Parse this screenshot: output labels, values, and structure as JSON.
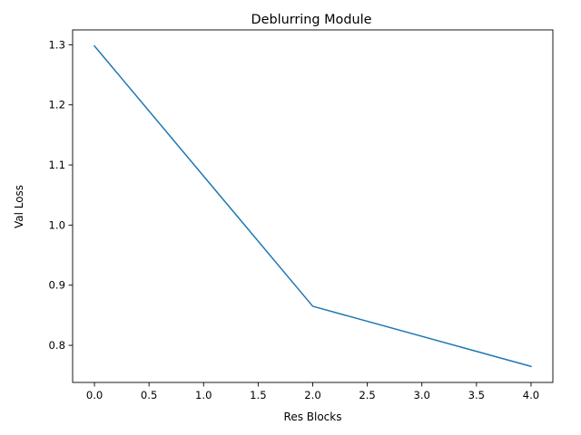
{
  "chart_data": {
    "type": "line",
    "title": "Deblurring Module",
    "xlabel": "Res Blocks",
    "ylabel": "Val Loss",
    "x": [
      0.0,
      2.0,
      4.0
    ],
    "series": [
      {
        "values": [
          1.298,
          0.865,
          0.765
        ],
        "color": "#1f77b4"
      }
    ],
    "xlim": [
      -0.2,
      4.2
    ],
    "ylim": [
      0.7383,
      1.3247
    ],
    "xticks": [
      "0.0",
      "0.5",
      "1.0",
      "1.5",
      "2.0",
      "2.5",
      "3.0",
      "3.5",
      "4.0"
    ],
    "yticks": [
      "0.8",
      "0.9",
      "1.0",
      "1.1",
      "1.2",
      "1.3"
    ],
    "grid": false,
    "legend": "none"
  }
}
